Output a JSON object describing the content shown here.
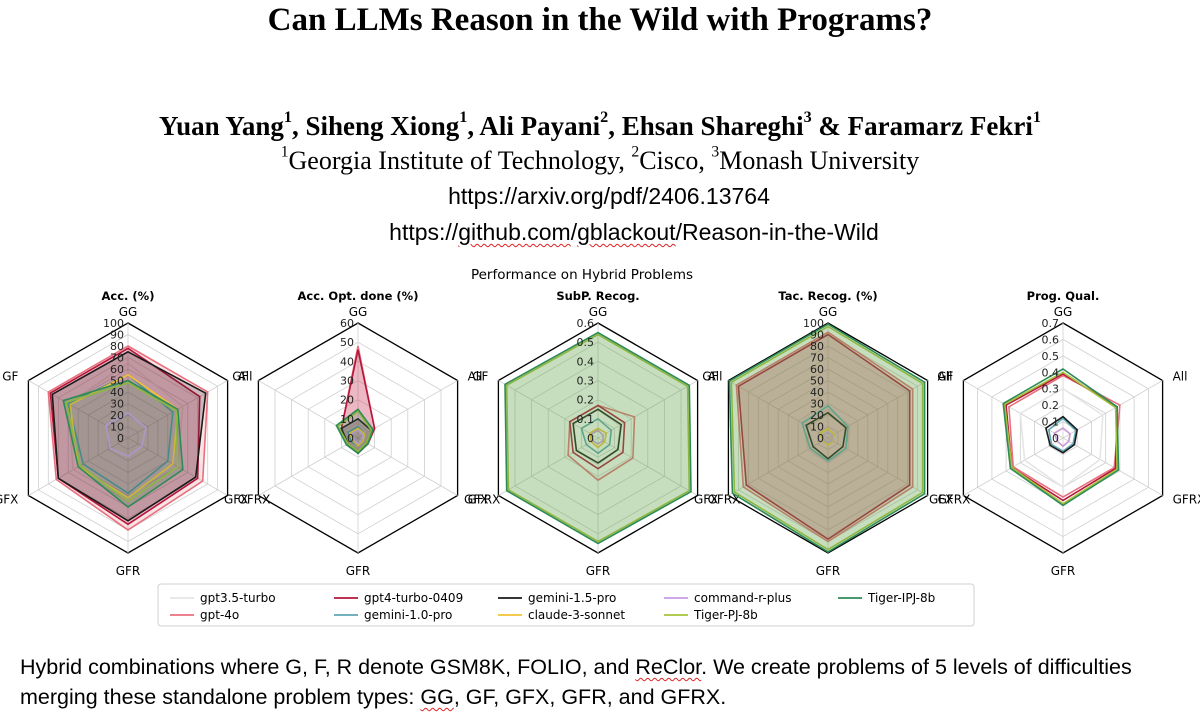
{
  "paper": {
    "title": "Can LLMs Reason in the Wild with Programs?",
    "authors": [
      {
        "name": "Yuan Yang",
        "aff": "1",
        "sep": ", "
      },
      {
        "name": "Siheng Xiong",
        "aff": "1",
        "sep": ", "
      },
      {
        "name": "Ali Payani",
        "aff": "2",
        "sep": ", "
      },
      {
        "name": "Ehsan Shareghi",
        "aff": "3",
        "sep": " & "
      },
      {
        "name": "Faramarz Fekri",
        "aff": "1",
        "sep": ""
      }
    ],
    "affiliations": [
      {
        "num": "1",
        "name": "Georgia Institute of Technology",
        "sep": ", "
      },
      {
        "num": "2",
        "name": "Cisco",
        "sep": ", "
      },
      {
        "num": "3",
        "name": "Monash University",
        "sep": ""
      }
    ],
    "arxiv": "https://arxiv.org/pdf/2406.13764",
    "github_prefix": "https://",
    "github_host": "github.com",
    "github_mid": "/",
    "github_user": "gblackout",
    "github_suffix": "/Reason-in-the-Wild"
  },
  "caption": {
    "p1": "Hybrid combinations where G, F, R denote GSM8K, FOLIO, and ",
    "p2": "ReClor",
    "p3": ". We create problems of 5 levels of difficulties merging these standalone problem types: ",
    "p4": "GG",
    "p5": ", GF, GFX, GFR, and GFRX."
  },
  "chart_data": {
    "type": "radar",
    "title": "Performance on Hybrid Problems",
    "axes": [
      "GG",
      "All",
      "GFRX",
      "GFR",
      "GFX",
      "GF"
    ],
    "legend": {
      "placement": "bottom",
      "columns": 5
    },
    "series": [
      {
        "name": "gpt3.5-turbo",
        "color": "#e6e6e6"
      },
      {
        "name": "gpt-4o",
        "color": "#e8707e"
      },
      {
        "name": "gpt4-turbo-0409",
        "color": "#b5163b"
      },
      {
        "name": "gemini-1.0-pro",
        "color": "#5fa6b4"
      },
      {
        "name": "gemini-1.5-pro",
        "color": "#1a1a1a"
      },
      {
        "name": "claude-3-sonnet",
        "color": "#f2c232"
      },
      {
        "name": "command-r-plus",
        "color": "#c99be6"
      },
      {
        "name": "Tiger-PJ-8b",
        "color": "#a6c23a"
      },
      {
        "name": "Tiger-IPJ-8b",
        "color": "#2e8b57"
      }
    ],
    "charts": [
      {
        "title": "Acc. (%)",
        "rmax": 100,
        "ticks": [
          0,
          10,
          20,
          30,
          40,
          50,
          60,
          70,
          80,
          90,
          100
        ],
        "tick_labels": [
          "0",
          "10",
          "20",
          "30",
          "40",
          "50",
          "60",
          "70",
          "80",
          "90",
          "100"
        ],
        "filled": [
          "gpt-4o",
          "gpt4-turbo-0409",
          "gemini-1.5-pro",
          "Tiger-IPJ-8b"
        ],
        "values": {
          "gpt3.5-turbo": [
            65,
            55,
            50,
            55,
            55,
            60
          ],
          "gpt-4o": [
            80,
            80,
            75,
            80,
            72,
            80
          ],
          "gpt4-turbo-0409": [
            78,
            72,
            70,
            75,
            70,
            78
          ],
          "gemini-1.0-pro": [
            55,
            45,
            40,
            48,
            45,
            60
          ],
          "gemini-1.5-pro": [
            75,
            78,
            68,
            72,
            70,
            76
          ],
          "claude-3-sonnet": [
            55,
            50,
            45,
            52,
            50,
            58
          ],
          "command-r-plus": [
            22,
            18,
            14,
            16,
            18,
            22
          ],
          "Tiger-PJ-8b": [
            48,
            48,
            50,
            55,
            48,
            62
          ],
          "Tiger-IPJ-8b": [
            50,
            50,
            55,
            60,
            50,
            65
          ]
        }
      },
      {
        "title": "Acc. Opt. done (%)",
        "rmax": 60,
        "ticks": [
          0,
          10,
          20,
          30,
          40,
          50,
          60
        ],
        "tick_labels": [
          "0",
          "10",
          "20",
          "30",
          "40",
          "50",
          "60"
        ],
        "filled": [
          "gpt-4o",
          "gpt4-turbo-0409",
          "gemini-1.5-pro",
          "Tiger-IPJ-8b"
        ],
        "values": {
          "gpt3.5-turbo": [
            8,
            6,
            4,
            6,
            5,
            8
          ],
          "gpt-4o": [
            48,
            10,
            6,
            8,
            7,
            10
          ],
          "gpt4-turbo-0409": [
            46,
            10,
            6,
            8,
            6,
            10
          ],
          "gemini-1.0-pro": [
            6,
            4,
            3,
            4,
            4,
            6
          ],
          "gemini-1.5-pro": [
            10,
            8,
            5,
            8,
            6,
            10
          ],
          "claude-3-sonnet": [
            5,
            4,
            3,
            4,
            3,
            5
          ],
          "command-r-plus": [
            4,
            3,
            2,
            3,
            2,
            4
          ],
          "Tiger-PJ-8b": [
            14,
            8,
            5,
            7,
            6,
            12
          ],
          "Tiger-IPJ-8b": [
            15,
            9,
            6,
            8,
            7,
            13
          ]
        }
      },
      {
        "title": "SubP. Recog.",
        "rmax": 0.6,
        "ticks": [
          0,
          0.1,
          0.2,
          0.3,
          0.4,
          0.5,
          0.6
        ],
        "tick_labels": [
          "0",
          "0.1",
          "0.2",
          "0.3",
          "0.4",
          "0.5",
          "0.6"
        ],
        "filled": [
          "Tiger-PJ-8b",
          "Tiger-IPJ-8b"
        ],
        "values": {
          "gpt3.5-turbo": [
            0.15,
            0.13,
            0.12,
            0.14,
            0.13,
            0.15
          ],
          "gpt-4o": [
            0.17,
            0.22,
            0.21,
            0.22,
            0.18,
            0.17
          ],
          "gpt4-turbo-0409": [
            0.17,
            0.16,
            0.15,
            0.16,
            0.15,
            0.17
          ],
          "gemini-1.0-pro": [
            0.1,
            0.08,
            0.07,
            0.08,
            0.07,
            0.1
          ],
          "gemini-1.5-pro": [
            0.15,
            0.14,
            0.12,
            0.13,
            0.13,
            0.15
          ],
          "claude-3-sonnet": [
            0.05,
            0.05,
            0.04,
            0.05,
            0.04,
            0.05
          ],
          "command-r-plus": [
            0.04,
            0.03,
            0.03,
            0.03,
            0.03,
            0.04
          ],
          "Tiger-PJ-8b": [
            0.54,
            0.54,
            0.55,
            0.54,
            0.54,
            0.55
          ],
          "Tiger-IPJ-8b": [
            0.55,
            0.55,
            0.56,
            0.55,
            0.55,
            0.56
          ]
        }
      },
      {
        "title": "Tac. Recog. (%)",
        "rmax": 100,
        "ticks": [
          0,
          10,
          20,
          30,
          40,
          50,
          60,
          70,
          80,
          90,
          100
        ],
        "tick_labels": [
          "0",
          "10",
          "20",
          "30",
          "40",
          "50",
          "60",
          "70",
          "80",
          "90",
          "100"
        ],
        "filled": [
          "gpt-4o",
          "gpt4-turbo-0409",
          "Tiger-PJ-8b",
          "Tiger-IPJ-8b"
        ],
        "values": {
          "gpt3.5-turbo": [
            25,
            22,
            20,
            22,
            20,
            25
          ],
          "gpt-4o": [
            92,
            85,
            85,
            90,
            85,
            92
          ],
          "gpt4-turbo-0409": [
            90,
            82,
            82,
            88,
            82,
            90
          ],
          "gemini-1.0-pro": [
            28,
            20,
            18,
            20,
            18,
            26
          ],
          "gemini-1.5-pro": [
            22,
            18,
            15,
            18,
            15,
            22
          ],
          "claude-3-sonnet": [
            8,
            6,
            5,
            6,
            5,
            8
          ],
          "command-r-plus": [
            5,
            4,
            4,
            4,
            4,
            5
          ],
          "Tiger-PJ-8b": [
            97,
            95,
            95,
            97,
            94,
            97
          ],
          "Tiger-IPJ-8b": [
            99,
            97,
            97,
            99,
            96,
            99
          ]
        }
      },
      {
        "title": "Prog. Qual.",
        "rmax": 0.7,
        "ticks": [
          0,
          0.1,
          0.2,
          0.3,
          0.4,
          0.5,
          0.6,
          0.7
        ],
        "tick_labels": [
          "0",
          "0.1",
          "0.2",
          "0.3",
          "0.4",
          "0.5",
          "0.6",
          "0.7"
        ],
        "filled": [],
        "values": {
          "gpt3.5-turbo": [
            0.3,
            0.28,
            0.26,
            0.3,
            0.27,
            0.3
          ],
          "gpt-4o": [
            0.38,
            0.4,
            0.36,
            0.36,
            0.35,
            0.38
          ],
          "gpt4-turbo-0409": [
            0.39,
            0.38,
            0.37,
            0.38,
            0.36,
            0.4
          ],
          "gemini-1.0-pro": [
            0.12,
            0.09,
            0.07,
            0.08,
            0.08,
            0.1
          ],
          "gemini-1.5-pro": [
            0.13,
            0.1,
            0.08,
            0.09,
            0.09,
            0.12
          ],
          "claude-3-sonnet": [
            0.06,
            0.05,
            0.04,
            0.05,
            0.04,
            0.06
          ],
          "command-r-plus": [
            0.06,
            0.05,
            0.04,
            0.05,
            0.04,
            0.06
          ],
          "Tiger-PJ-8b": [
            0.4,
            0.37,
            0.38,
            0.4,
            0.36,
            0.41
          ],
          "Tiger-IPJ-8b": [
            0.42,
            0.38,
            0.39,
            0.41,
            0.37,
            0.42
          ]
        }
      }
    ]
  }
}
